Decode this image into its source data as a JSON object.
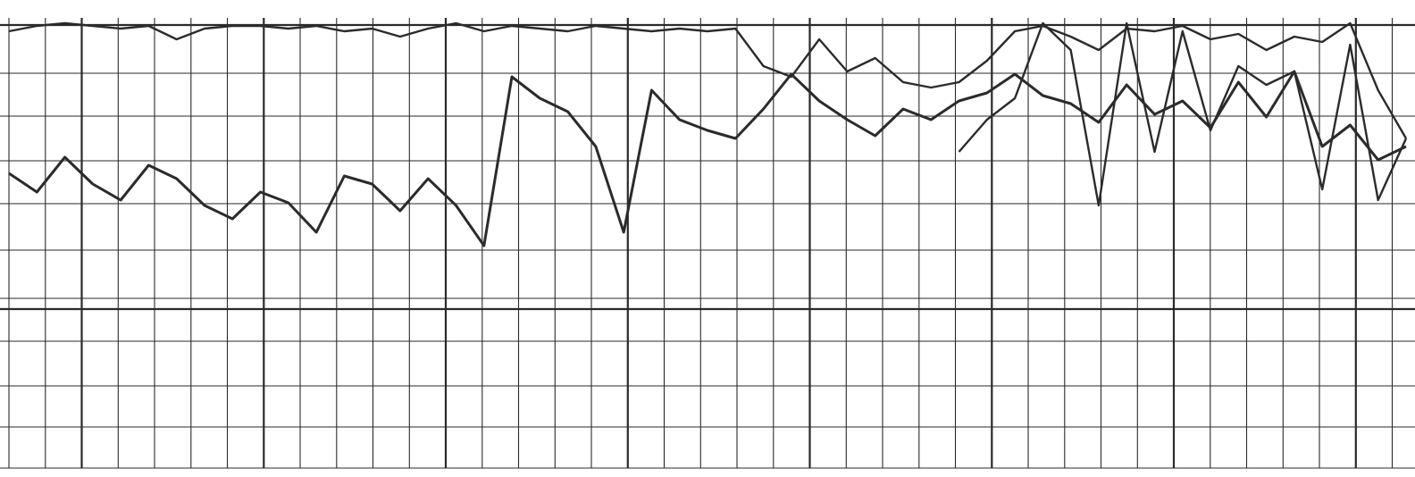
{
  "chart_data": {
    "type": "line",
    "title": "",
    "xlabel": "",
    "ylabel": "",
    "grid": true,
    "colors": {
      "paper": "#ffffff",
      "grid": "#2a2a2a",
      "trace": "#2b2b2b"
    },
    "series": [
      {
        "x": [
          0,
          2,
          4,
          6,
          8,
          10,
          12,
          14,
          16,
          18,
          20,
          22,
          24,
          26,
          28,
          30,
          32,
          34,
          36,
          38,
          40,
          42,
          44,
          46,
          48,
          50,
          52,
          54,
          56,
          58,
          60,
          62,
          64,
          66,
          68,
          70,
          72,
          74,
          76,
          78,
          80,
          82,
          84,
          86,
          88,
          90,
          92,
          94,
          96,
          98,
          100
        ],
        "values": [
          0.95,
          0.97,
          0.98,
          0.97,
          0.96,
          0.97,
          0.92,
          0.96,
          0.97,
          0.97,
          0.96,
          0.97,
          0.95,
          0.96,
          0.93,
          0.96,
          0.98,
          0.95,
          0.97,
          0.96,
          0.95,
          0.97,
          0.96,
          0.95,
          0.96,
          0.95,
          0.96,
          0.82,
          0.78,
          0.92,
          0.8,
          0.85,
          0.76,
          0.74,
          0.76,
          0.84,
          0.95,
          0.97,
          0.93,
          0.88,
          0.96,
          0.95,
          0.97,
          0.92,
          0.94,
          0.88,
          0.93,
          0.91,
          0.98,
          0.73,
          0.55
        ]
      },
      {
        "x": [
          0,
          2,
          4,
          6,
          8,
          10,
          12,
          14,
          16,
          18,
          20,
          22,
          24,
          26,
          28,
          30,
          32,
          34,
          36,
          38,
          40,
          42,
          44,
          46,
          48,
          50,
          52,
          54,
          56,
          58,
          60,
          62,
          64,
          66,
          68,
          70,
          72,
          74,
          76,
          78,
          80,
          82,
          84,
          86,
          88,
          90,
          92,
          94,
          96,
          98,
          100
        ],
        "values": [
          0.42,
          0.35,
          0.48,
          0.38,
          0.32,
          0.45,
          0.4,
          0.3,
          0.25,
          0.35,
          0.31,
          0.2,
          0.41,
          0.38,
          0.28,
          0.4,
          0.3,
          0.15,
          0.78,
          0.7,
          0.65,
          0.52,
          0.2,
          0.73,
          0.62,
          0.58,
          0.55,
          0.66,
          0.79,
          0.69,
          0.62,
          0.56,
          0.66,
          0.62,
          0.69,
          0.72,
          0.79,
          0.71,
          0.68,
          0.61,
          0.75,
          0.64,
          0.69,
          0.59,
          0.76,
          0.63,
          0.8,
          0.52,
          0.6,
          0.47,
          0.52
        ]
      },
      {
        "x": [
          68,
          70,
          72,
          74,
          76,
          78,
          80,
          82,
          84,
          86,
          88,
          90,
          92,
          94,
          96,
          98,
          100
        ],
        "values": [
          0.5,
          0.62,
          0.7,
          0.98,
          0.88,
          0.3,
          0.98,
          0.5,
          0.95,
          0.58,
          0.82,
          0.75,
          0.8,
          0.36,
          0.9,
          0.32,
          0.55
        ]
      }
    ]
  }
}
